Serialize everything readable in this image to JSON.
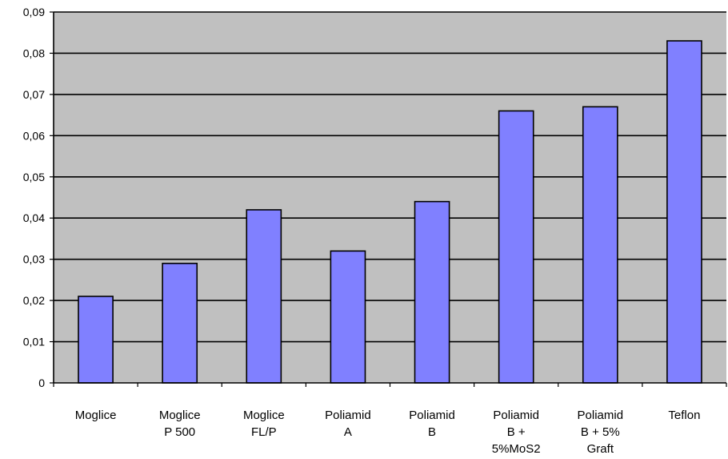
{
  "chart_data": {
    "type": "bar",
    "title": "",
    "xlabel": "",
    "ylabel": "",
    "ylim": [
      0,
      0.09
    ],
    "yticks": [
      "0",
      "0,01",
      "0,02",
      "0,03",
      "0,04",
      "0,05",
      "0,06",
      "0,07",
      "0,08",
      "0,09"
    ],
    "grid": true,
    "legend": "none",
    "categories": [
      [
        "Moglice"
      ],
      [
        "Moglice",
        "P 500"
      ],
      [
        "Moglice",
        "FL/P"
      ],
      [
        "Poliamid",
        "A"
      ],
      [
        "Poliamid",
        "B"
      ],
      [
        "Poliamid",
        "B +",
        "5%MoS2"
      ],
      [
        "Poliamid",
        "B + 5%",
        "Graft"
      ],
      [
        "Teflon"
      ]
    ],
    "values": [
      0.021,
      0.029,
      0.042,
      0.032,
      0.044,
      0.066,
      0.067,
      0.083
    ],
    "colors": {
      "bar_fill": "#8080ff",
      "bar_stroke": "#000000",
      "plot_bg": "#c0c0c0",
      "grid": "#000000"
    }
  }
}
